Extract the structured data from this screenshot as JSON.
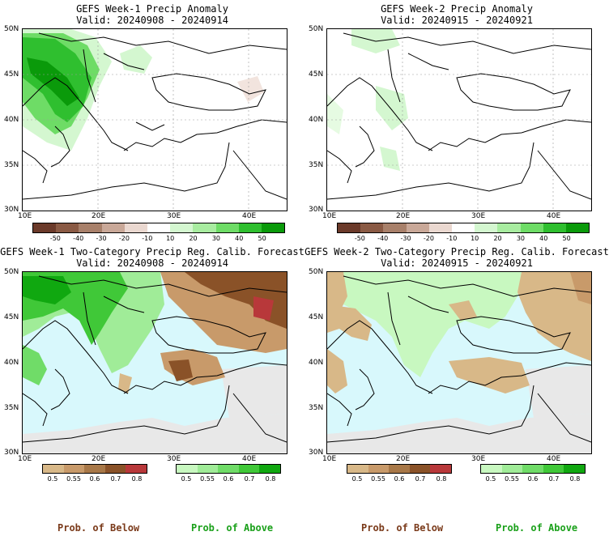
{
  "panels": [
    {
      "title1": "GEFS Week-1 Precip Anomaly",
      "title2": "Valid: 20240908 - 20240914",
      "lat_labels": [
        "50N",
        "45N",
        "40N",
        "35N",
        "30N"
      ],
      "lon_labels": [
        "10E",
        "20E",
        "30E",
        "40E"
      ],
      "colorbar_ticks": [
        "-50",
        "-40",
        "-30",
        "-20",
        "-10",
        "10",
        "20",
        "30",
        "40",
        "50"
      ],
      "colorbar_colors": [
        "#6b3a2a",
        "#8a5a44",
        "#a8806a",
        "#c9a898",
        "#ead8d0",
        "#ffffff",
        "#d4f7d0",
        "#a8ecA0",
        "#6edc66",
        "#2fbf2f",
        "#0a9a0a"
      ]
    },
    {
      "title1": "GEFS Week-2 Precip Anomaly",
      "title2": "Valid: 20240915 - 20240921",
      "lat_labels": [
        "50N",
        "45N",
        "40N",
        "35N",
        "30N"
      ],
      "lon_labels": [
        "10E",
        "20E",
        "30E",
        "40E"
      ],
      "colorbar_ticks": [
        "-50",
        "-40",
        "-30",
        "-20",
        "-10",
        "10",
        "20",
        "30",
        "40",
        "50"
      ],
      "colorbar_colors": [
        "#6b3a2a",
        "#8a5a44",
        "#a8806a",
        "#c9a898",
        "#ead8d0",
        "#ffffff",
        "#d4f7d0",
        "#a8eca0",
        "#6edc66",
        "#2fbf2f",
        "#0a9a0a"
      ]
    },
    {
      "title1": "GEFS Week-1 Two-Category Precip Reg. Calib. Forecast",
      "title2": "Valid: 20240908 - 20240914",
      "lat_labels": [
        "50N",
        "45N",
        "40N",
        "35N",
        "30N"
      ],
      "lon_labels": [
        "10E",
        "20E",
        "30E",
        "40E"
      ],
      "below_ticks": [
        "0.5",
        "0.55",
        "0.6",
        "0.7",
        "0.8"
      ],
      "below_colors": [
        "#d8b888",
        "#c89a6a",
        "#a87848",
        "#8a5228",
        "#b8383a"
      ],
      "above_ticks": [
        "0.5",
        "0.55",
        "0.6",
        "0.7",
        "0.8"
      ],
      "above_colors": [
        "#c8f8c0",
        "#a0ec98",
        "#70dc68",
        "#40c838",
        "#10a810"
      ]
    },
    {
      "title1": "GEFS Week-2 Two-Category Precip Reg. Calib. Forecast",
      "title2": "Valid: 20240915 - 20240921",
      "lat_labels": [
        "50N",
        "45N",
        "40N",
        "35N",
        "30N"
      ],
      "lon_labels": [
        "10E",
        "20E",
        "30E",
        "40E"
      ],
      "below_ticks": [
        "0.5",
        "0.55",
        "0.6",
        "0.7",
        "0.8"
      ],
      "below_colors": [
        "#d8b888",
        "#c89a6a",
        "#a87848",
        "#8a5228",
        "#b8383a"
      ],
      "above_ticks": [
        "0.5",
        "0.55",
        "0.6",
        "0.7",
        "0.8"
      ],
      "above_colors": [
        "#c8f8c0",
        "#a0ec98",
        "#70dc68",
        "#40c838",
        "#10a810"
      ]
    }
  ],
  "footer": {
    "below_label": "Prob. of Below",
    "above_label": "Prob. of Above",
    "below_color": "#7a3a1a",
    "above_color": "#1aa01a"
  },
  "colors": {
    "sea": "#d8f8fc",
    "no_data": "#e8e8e8",
    "coast": "#000000"
  }
}
